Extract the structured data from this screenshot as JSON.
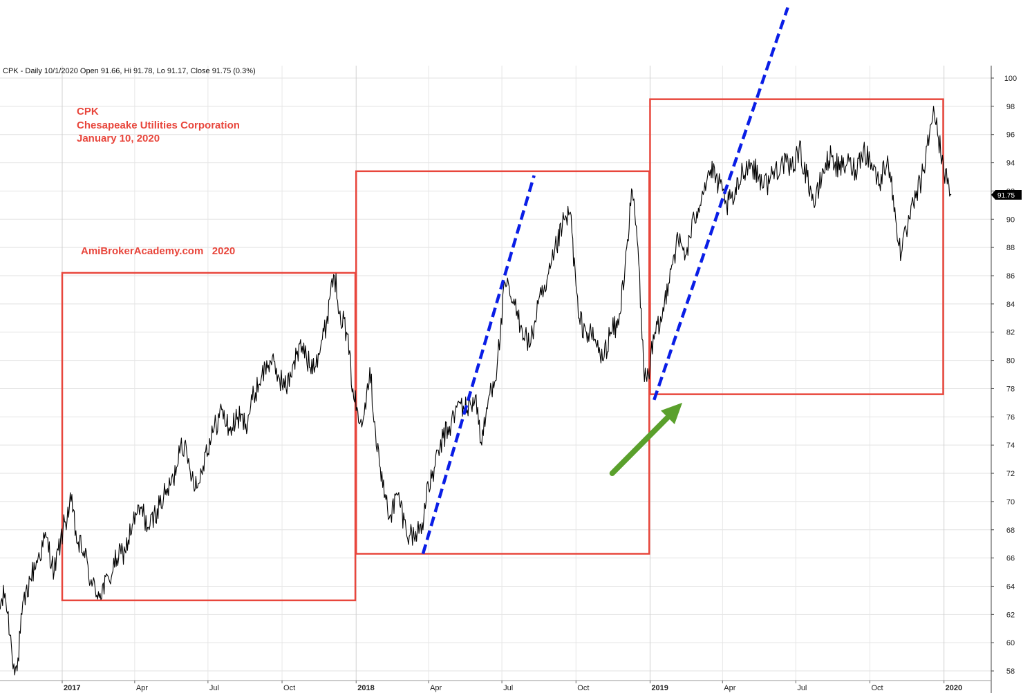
{
  "chart_data": {
    "type": "line",
    "header": "CPK - Daily 10/1/2020 Open 91.66, Hi 91.78, Lo 91.17, Close 91.75 (0.3%)",
    "annotations": {
      "symbol": "CPK",
      "company": "Chesapeake Utilities Corporation",
      "date": "January 10, 2020",
      "watermark": "AmiBrokerAcademy.com   2020"
    },
    "last_value_label": "91.75",
    "ylim": [
      56.8,
      101.4
    ],
    "y_ticks": [
      58,
      60,
      62,
      64,
      66,
      68,
      70,
      72,
      74,
      76,
      78,
      80,
      82,
      84,
      86,
      88,
      90,
      92,
      94,
      96,
      98,
      100
    ],
    "xlim": [
      "2016-10-11",
      "2020-01-31"
    ],
    "x_ticks": [
      {
        "date": "2017-01-01",
        "label": "2017",
        "major": true
      },
      {
        "date": "2017-04-01",
        "label": "Apr",
        "major": false
      },
      {
        "date": "2017-07-01",
        "label": "Jul",
        "major": false
      },
      {
        "date": "2017-10-01",
        "label": "Oct",
        "major": false
      },
      {
        "date": "2018-01-01",
        "label": "2018",
        "major": true
      },
      {
        "date": "2018-04-01",
        "label": "Apr",
        "major": false
      },
      {
        "date": "2018-07-01",
        "label": "Jul",
        "major": false
      },
      {
        "date": "2018-10-01",
        "label": "Oct",
        "major": false
      },
      {
        "date": "2019-01-01",
        "label": "2019",
        "major": true
      },
      {
        "date": "2019-04-01",
        "label": "Apr",
        "major": false
      },
      {
        "date": "2019-07-01",
        "label": "Jul",
        "major": false
      },
      {
        "date": "2019-10-01",
        "label": "Oct",
        "major": false
      },
      {
        "date": "2020-01-01",
        "label": "2020",
        "major": true
      }
    ],
    "grid": true,
    "series": [
      {
        "points": [
          [
            "2016-10-12",
            62.0
          ],
          [
            "2016-10-22",
            63.5
          ],
          [
            "2016-11-02",
            58.5
          ],
          [
            "2016-11-06",
            58.0
          ],
          [
            "2016-11-12",
            62.0
          ],
          [
            "2016-11-22",
            64.5
          ],
          [
            "2016-12-02",
            66.0
          ],
          [
            "2016-12-12",
            67.5
          ],
          [
            "2016-12-22",
            65.0
          ],
          [
            "2017-01-02",
            68.0
          ],
          [
            "2017-01-12",
            70.0
          ],
          [
            "2017-01-20",
            67.0
          ],
          [
            "2017-01-28",
            66.5
          ],
          [
            "2017-02-07",
            64.0
          ],
          [
            "2017-02-17",
            63.5
          ],
          [
            "2017-02-28",
            64.5
          ],
          [
            "2017-03-10",
            66.0
          ],
          [
            "2017-03-20",
            66.5
          ],
          [
            "2017-03-30",
            68.5
          ],
          [
            "2017-04-09",
            69.5
          ],
          [
            "2017-04-19",
            68.0
          ],
          [
            "2017-04-29",
            69.5
          ],
          [
            "2017-05-09",
            70.5
          ],
          [
            "2017-05-19",
            71.5
          ],
          [
            "2017-05-29",
            74.5
          ],
          [
            "2017-06-08",
            72.5
          ],
          [
            "2017-06-18",
            71.0
          ],
          [
            "2017-06-28",
            73.5
          ],
          [
            "2017-07-08",
            75.0
          ],
          [
            "2017-07-18",
            76.5
          ],
          [
            "2017-07-28",
            75.0
          ],
          [
            "2017-08-07",
            76.0
          ],
          [
            "2017-08-17",
            75.5
          ],
          [
            "2017-08-27",
            77.5
          ],
          [
            "2017-09-06",
            79.0
          ],
          [
            "2017-09-16",
            80.0
          ],
          [
            "2017-09-26",
            79.0
          ],
          [
            "2017-10-06",
            78.0
          ],
          [
            "2017-10-16",
            80.0
          ],
          [
            "2017-10-26",
            81.0
          ],
          [
            "2017-11-05",
            79.5
          ],
          [
            "2017-11-15",
            80.5
          ],
          [
            "2017-11-25",
            82.5
          ],
          [
            "2017-12-01",
            85.5
          ],
          [
            "2017-12-05",
            86.0
          ],
          [
            "2017-12-12",
            83.5
          ],
          [
            "2017-12-20",
            82.0
          ],
          [
            "2017-12-28",
            78.0
          ],
          [
            "2018-01-05",
            75.5
          ],
          [
            "2018-01-12",
            77.0
          ],
          [
            "2018-01-18",
            79.5
          ],
          [
            "2018-01-25",
            75.0
          ],
          [
            "2018-02-03",
            71.0
          ],
          [
            "2018-02-12",
            69.0
          ],
          [
            "2018-02-22",
            70.5
          ],
          [
            "2018-03-04",
            68.0
          ],
          [
            "2018-03-14",
            67.5
          ],
          [
            "2018-03-24",
            68.5
          ],
          [
            "2018-04-01",
            71.0
          ],
          [
            "2018-04-09",
            72.5
          ],
          [
            "2018-04-19",
            74.5
          ],
          [
            "2018-04-29",
            75.5
          ],
          [
            "2018-05-09",
            77.0
          ],
          [
            "2018-05-19",
            76.5
          ],
          [
            "2018-05-29",
            77.5
          ],
          [
            "2018-06-06",
            74.0
          ],
          [
            "2018-06-15",
            77.5
          ],
          [
            "2018-06-25",
            79.5
          ],
          [
            "2018-07-05",
            85.5
          ],
          [
            "2018-07-15",
            84.0
          ],
          [
            "2018-07-25",
            82.5
          ],
          [
            "2018-08-05",
            81.0
          ],
          [
            "2018-08-15",
            84.0
          ],
          [
            "2018-08-25",
            85.0
          ],
          [
            "2018-09-04",
            87.5
          ],
          [
            "2018-09-14",
            89.5
          ],
          [
            "2018-09-24",
            90.5
          ],
          [
            "2018-10-04",
            83.0
          ],
          [
            "2018-10-14",
            82.0
          ],
          [
            "2018-10-24",
            81.5
          ],
          [
            "2018-11-03",
            80.0
          ],
          [
            "2018-11-13",
            82.0
          ],
          [
            "2018-11-23",
            82.5
          ],
          [
            "2018-12-03",
            88.0
          ],
          [
            "2018-12-10",
            92.0
          ],
          [
            "2018-12-17",
            88.0
          ],
          [
            "2018-12-24",
            79.5
          ],
          [
            "2018-12-28",
            78.5
          ],
          [
            "2019-01-06",
            81.5
          ],
          [
            "2019-01-16",
            83.0
          ],
          [
            "2019-01-26",
            86.5
          ],
          [
            "2019-02-05",
            88.5
          ],
          [
            "2019-02-15",
            87.5
          ],
          [
            "2019-02-25",
            90.0
          ],
          [
            "2019-03-07",
            92.0
          ],
          [
            "2019-03-17",
            93.5
          ],
          [
            "2019-03-27",
            92.5
          ],
          [
            "2019-04-06",
            91.0
          ],
          [
            "2019-04-16",
            91.5
          ],
          [
            "2019-04-26",
            93.5
          ],
          [
            "2019-05-06",
            94.0
          ],
          [
            "2019-05-16",
            93.0
          ],
          [
            "2019-05-26",
            92.5
          ],
          [
            "2019-06-05",
            93.5
          ],
          [
            "2019-06-15",
            94.0
          ],
          [
            "2019-06-25",
            93.5
          ],
          [
            "2019-07-05",
            95.0
          ],
          [
            "2019-07-15",
            93.0
          ],
          [
            "2019-07-25",
            91.0
          ],
          [
            "2019-08-04",
            93.5
          ],
          [
            "2019-08-14",
            94.5
          ],
          [
            "2019-08-24",
            93.5
          ],
          [
            "2019-09-03",
            94.0
          ],
          [
            "2019-09-13",
            93.5
          ],
          [
            "2019-09-23",
            95.0
          ],
          [
            "2019-10-03",
            94.0
          ],
          [
            "2019-10-13",
            92.5
          ],
          [
            "2019-10-23",
            94.5
          ],
          [
            "2019-11-02",
            90.0
          ],
          [
            "2019-11-09",
            87.5
          ],
          [
            "2019-11-17",
            89.5
          ],
          [
            "2019-11-27",
            91.5
          ],
          [
            "2019-12-07",
            93.5
          ],
          [
            "2019-12-14",
            96.0
          ],
          [
            "2019-12-19",
            98.0
          ],
          [
            "2019-12-24",
            96.0
          ],
          [
            "2019-12-31",
            94.0
          ],
          [
            "2020-01-05",
            92.5
          ],
          [
            "2020-01-10",
            91.75
          ]
        ]
      }
    ]
  },
  "overlays": {
    "colors": {
      "text": "#e8463c",
      "box": "#e8463c",
      "trend": "#0a1ee6",
      "arrow": "#5aa02c",
      "price": "#000000"
    },
    "boxes": [
      {
        "x0": "2017-01-01",
        "x1": "2017-12-31",
        "y0": 63.0,
        "y1": 86.2
      },
      {
        "x0": "2018-01-01",
        "x1": "2018-12-31",
        "y0": 66.3,
        "y1": 93.4
      },
      {
        "x0": "2019-01-01",
        "x1": "2019-12-31",
        "y0": 77.6,
        "y1": 98.5
      }
    ],
    "trendlines": [
      {
        "x0": "2018-03-25",
        "y0": 66.3,
        "x1": "2018-08-10",
        "y1": 93.1
      },
      {
        "x0": "2019-01-06",
        "y0": 77.2,
        "x1": "2019-06-21",
        "y1": 105.0
      }
    ],
    "arrow": {
      "x0": "2018-11-15",
      "y0": 72.0,
      "x1": "2019-02-10",
      "y1": 77.0
    }
  }
}
